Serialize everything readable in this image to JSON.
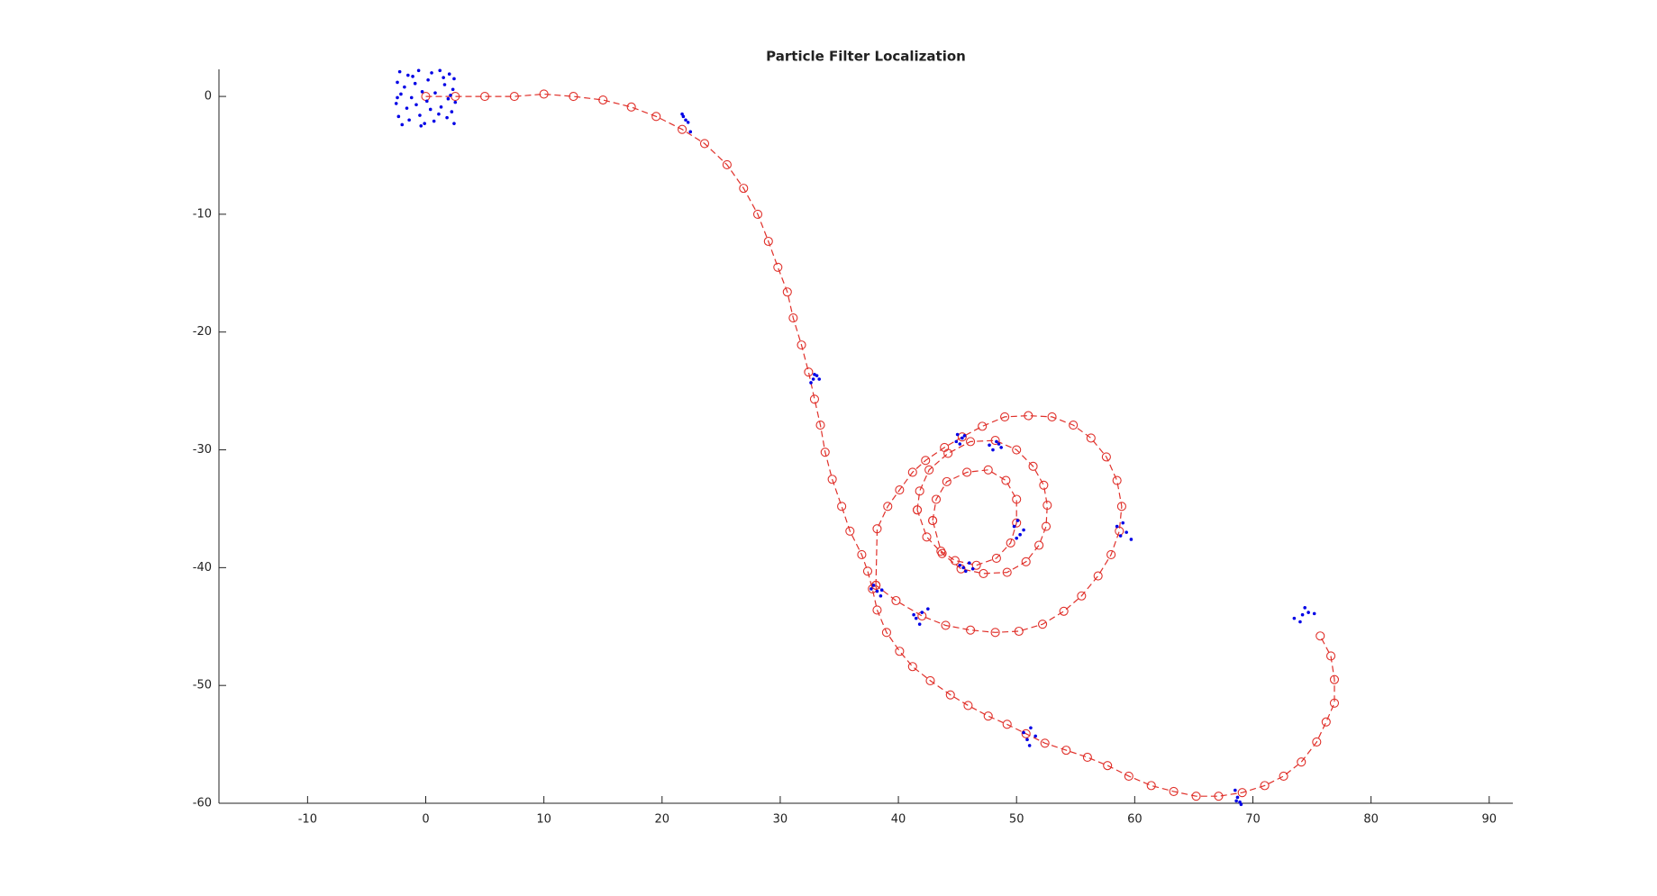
{
  "chart_data": {
    "type": "line",
    "title": "Particle Filter Localization",
    "xlim": [
      -17.5,
      92
    ],
    "ylim": [
      -60,
      2.3
    ],
    "xticks": [
      -10,
      0,
      10,
      20,
      30,
      40,
      50,
      60,
      70,
      80,
      90
    ],
    "yticks": [
      0,
      -10,
      -20,
      -30,
      -40,
      -50,
      -60
    ],
    "grid": false,
    "series": [
      {
        "color": "#e0302a",
        "line": "dashed",
        "marker": "circle",
        "x": [
          0,
          2.5,
          5.0,
          7.5,
          10.0,
          12.5,
          15.0,
          17.4,
          19.5,
          21.7,
          23.6,
          25.5,
          26.9,
          28.1,
          29.0,
          29.8,
          30.6,
          31.1,
          31.8,
          32.4,
          32.9,
          33.4,
          33.8,
          34.4,
          35.2,
          35.9,
          36.9,
          37.4,
          37.8,
          38.2,
          39.0,
          40.1,
          41.2,
          42.7,
          44.4,
          45.9,
          47.6,
          49.2,
          50.8,
          52.4,
          54.2,
          56.0,
          57.7,
          59.5,
          61.4,
          63.3,
          65.2,
          67.1,
          69.1,
          71.0,
          72.6,
          74.1,
          75.4,
          76.2,
          76.9,
          76.9,
          76.6,
          75.7,
          null,
          38.1,
          38.2,
          39.1,
          40.1,
          41.2,
          42.3,
          43.9,
          45.4,
          47.1,
          49.0,
          51.0,
          53.0,
          54.8,
          56.3,
          57.6,
          58.5,
          58.9,
          58.7,
          58.0,
          56.9,
          55.5,
          54.0,
          52.2,
          50.2,
          48.2,
          46.1,
          44.0,
          42.0,
          39.8,
          38.1,
          null,
          41.6,
          41.8,
          42.6,
          44.2,
          46.1,
          48.2,
          50.0,
          51.4,
          52.3,
          52.6,
          52.5,
          51.9,
          50.8,
          49.2,
          47.2,
          45.3,
          43.7,
          42.4,
          41.6,
          null,
          42.9,
          43.2,
          44.1,
          45.8,
          47.6,
          49.1,
          50.0,
          50.0,
          49.5,
          48.3,
          46.6,
          44.8,
          43.6,
          42.9
        ],
        "y": [
          0,
          0,
          0,
          0,
          0.2,
          0,
          -0.3,
          -0.9,
          -1.7,
          -2.8,
          -4.0,
          -5.8,
          -7.8,
          -10.0,
          -12.3,
          -14.5,
          -16.6,
          -18.8,
          -21.1,
          -23.4,
          -25.7,
          -27.9,
          -30.2,
          -32.5,
          -34.8,
          -36.9,
          -38.9,
          -40.3,
          -41.8,
          -43.6,
          -45.5,
          -47.1,
          -48.4,
          -49.6,
          -50.8,
          -51.7,
          -52.6,
          -53.3,
          -54.1,
          -54.9,
          -55.5,
          -56.1,
          -56.8,
          -57.7,
          -58.5,
          -59.0,
          -59.4,
          -59.4,
          -59.1,
          -58.5,
          -57.7,
          -56.5,
          -54.8,
          -53.1,
          -51.5,
          -49.5,
          -47.5,
          -45.8,
          null,
          -41.5,
          -36.7,
          -34.8,
          -33.4,
          -31.9,
          -30.9,
          -29.8,
          -28.9,
          -28.0,
          -27.2,
          -27.1,
          -27.2,
          -27.9,
          -29.0,
          -30.6,
          -32.6,
          -34.8,
          -36.9,
          -38.9,
          -40.7,
          -42.4,
          -43.7,
          -44.8,
          -45.4,
          -45.5,
          -45.3,
          -44.9,
          -44.1,
          -42.8,
          -41.5,
          null,
          -35.1,
          -33.5,
          -31.7,
          -30.3,
          -29.3,
          -29.2,
          -30.0,
          -31.4,
          -33.0,
          -34.7,
          -36.5,
          -38.1,
          -39.5,
          -40.4,
          -40.5,
          -40.1,
          -38.8,
          -37.4,
          -35.1,
          null,
          -36.0,
          -34.2,
          -32.7,
          -31.9,
          -31.7,
          -32.6,
          -34.2,
          -36.2,
          -37.9,
          -39.2,
          -39.8,
          -39.4,
          -38.6,
          -36.0
        ]
      },
      {
        "color": "#0000e6",
        "line": "none",
        "marker": "dot",
        "x": [
          -2.2,
          -1.5,
          -0.6,
          0.5,
          1.2,
          2.0,
          2.4,
          -2.4,
          -1.8,
          -0.9,
          0.2,
          1.6,
          2.3,
          -2.1,
          -1.2,
          -0.3,
          0.8,
          1.9,
          2.5,
          -2.5,
          -1.6,
          -0.8,
          0.4,
          1.3,
          2.2,
          -2.3,
          -1.4,
          -0.5,
          0.7,
          1.8,
          2.4,
          -2.0,
          -0.1,
          1.1,
          -1.1,
          0.1,
          1.5,
          -2.4,
          2.1,
          -0.4,
          21.8,
          22.0,
          21.7,
          22.4,
          22.2,
          32.8,
          33.1,
          32.6,
          33.3,
          32.9,
          45.0,
          45.4,
          44.9,
          45.6,
          45.2,
          47.7,
          48.3,
          48.7,
          48.0,
          48.5,
          49.8,
          50.3,
          50.1,
          50.6,
          50.0,
          58.5,
          59.0,
          59.3,
          58.8,
          59.7,
          45.5,
          46.0,
          45.7,
          46.3,
          45.2,
          37.7,
          38.2,
          38.5,
          37.9,
          38.6,
          41.5,
          42.0,
          41.8,
          42.5,
          41.3,
          50.6,
          51.2,
          51.6,
          50.9,
          51.1,
          68.6,
          69.0,
          68.7,
          68.5,
          68.9,
          73.5,
          74.2,
          74.7,
          74.0,
          74.4,
          75.2
        ],
        "y": [
          2.1,
          1.8,
          2.2,
          2.0,
          2.2,
          1.9,
          1.5,
          1.2,
          0.8,
          1.1,
          1.4,
          1.0,
          0.6,
          0.2,
          -0.1,
          0.4,
          0.3,
          -0.2,
          -0.5,
          -0.6,
          -1.0,
          -0.7,
          -1.1,
          -0.9,
          -1.3,
          -1.7,
          -2.0,
          -1.6,
          -2.1,
          -1.8,
          -2.3,
          -2.4,
          -2.3,
          -1.5,
          1.7,
          -0.4,
          1.6,
          -0.1,
          0.1,
          -2.5,
          -1.7,
          -2.0,
          -1.5,
          -3.0,
          -2.2,
          -24.0,
          -23.7,
          -24.3,
          -24.0,
          -23.6,
          -28.7,
          -29.0,
          -29.3,
          -28.8,
          -29.5,
          -29.6,
          -29.3,
          -29.8,
          -30.0,
          -29.5,
          -36.5,
          -37.2,
          -36.0,
          -36.8,
          -37.5,
          -36.5,
          -36.2,
          -37.0,
          -37.3,
          -37.6,
          -40.0,
          -39.6,
          -40.3,
          -40.1,
          -39.8,
          -41.8,
          -42.0,
          -42.4,
          -41.5,
          -41.9,
          -44.3,
          -43.8,
          -44.8,
          -43.5,
          -44.0,
          -54.0,
          -53.6,
          -54.3,
          -54.6,
          -55.1,
          -59.8,
          -60.1,
          -59.5,
          -58.9,
          -59.9,
          -44.3,
          -44.0,
          -43.8,
          -44.6,
          -43.4,
          -43.9
        ]
      }
    ]
  }
}
